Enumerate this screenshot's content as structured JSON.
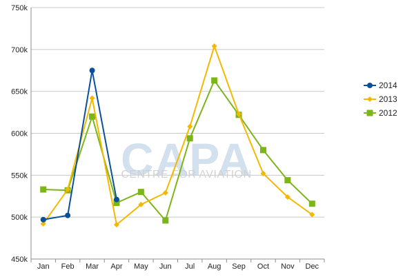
{
  "chart_data": {
    "type": "line",
    "categories": [
      "Jan",
      "Feb",
      "Mar",
      "Apr",
      "May",
      "Jun",
      "Jul",
      "Aug",
      "Sep",
      "Oct",
      "Nov",
      "Dec"
    ],
    "series": [
      {
        "name": "2014",
        "color": "#0a4f9c",
        "marker": "circle",
        "values": [
          497000,
          502000,
          675000,
          521000,
          null,
          null,
          null,
          null,
          null,
          null,
          null,
          null
        ]
      },
      {
        "name": "2013",
        "color": "#f5b800",
        "marker": "diamond",
        "values": [
          492000,
          533000,
          642000,
          491000,
          515000,
          529000,
          608000,
          704000,
          623000,
          552000,
          524000,
          503000
        ]
      },
      {
        "name": "2012",
        "color": "#7cb518",
        "marker": "square",
        "values": [
          533000,
          532000,
          620000,
          517000,
          530000,
          496000,
          594000,
          663000,
          622000,
          580000,
          544000,
          516000
        ]
      }
    ],
    "y_ticks": [
      "450k",
      "500k",
      "550k",
      "600k",
      "650k",
      "700k",
      "750k"
    ],
    "y_tick_values": [
      450000,
      500000,
      550000,
      600000,
      650000,
      700000,
      750000
    ],
    "ylim": [
      450000,
      750000
    ],
    "grid": true,
    "legend_position": "right"
  },
  "watermark": {
    "logo": "CAPA",
    "tagline": "CENTRE FOR AVIATION"
  }
}
